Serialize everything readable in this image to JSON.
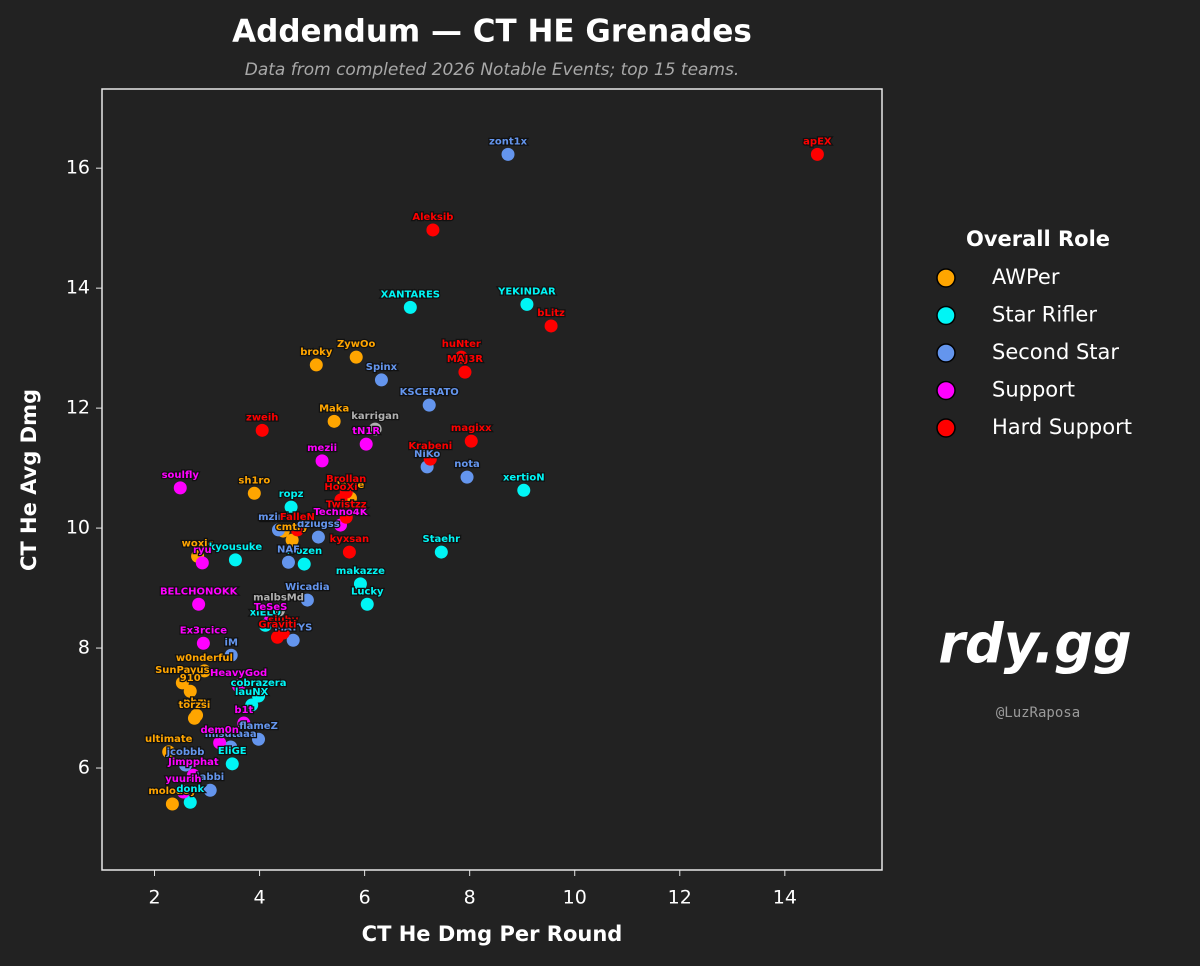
{
  "chart_data": {
    "type": "scatter",
    "title": "Addendum — CT HE Grenades",
    "subtitle": "Data from completed 2026 Notable Events; top 15 teams.",
    "xlabel": "CT He Dmg Per Round",
    "ylabel": "CT He Avg Dmg",
    "legend_title": "Overall Role",
    "xlim": [
      1.0,
      15.85
    ],
    "ylim": [
      4.3,
      17.32
    ],
    "xticks": [
      2,
      4,
      6,
      8,
      10,
      12,
      14
    ],
    "yticks": [
      6,
      8,
      10,
      12,
      14,
      16
    ],
    "series": [
      {
        "name": "AWPer",
        "color": "#ffa500",
        "labels": [
          "ZywOo",
          "broky",
          "Maka",
          "sh1ro",
          "m0NESY",
          "cmtry",
          "woxic",
          "w0nderful",
          "SunPayus",
          "910",
          "phzy",
          "torzsi",
          "ultimate",
          "molodoy",
          "Jame"
        ],
        "x": [
          5.84,
          5.08,
          5.42,
          3.9,
          4.45,
          4.62,
          2.82,
          2.95,
          2.53,
          2.68,
          2.8,
          2.76,
          2.27,
          2.34,
          5.73
        ],
        "values": [
          12.85,
          12.72,
          11.78,
          10.58,
          9.95,
          9.8,
          9.53,
          7.62,
          7.42,
          7.28,
          6.88,
          6.83,
          6.27,
          5.4,
          10.5
        ]
      },
      {
        "name": "Star Rifler",
        "color": "#00f5f5",
        "labels": [
          "XANTARES",
          "YEKINDAR",
          "xertioN",
          "Staehr",
          "ropz",
          "frozen",
          "makazze",
          "Lucky",
          "xiELO",
          "cobrazera",
          "lauNX",
          "EliGE",
          "donk",
          "kyousuke"
        ],
        "x": [
          6.87,
          9.09,
          9.03,
          7.46,
          4.6,
          4.85,
          5.92,
          6.05,
          4.11,
          3.98,
          3.85,
          3.48,
          2.68,
          3.54
        ],
        "values": [
          13.68,
          13.73,
          10.63,
          9.6,
          10.35,
          9.4,
          9.07,
          8.73,
          8.38,
          7.2,
          7.05,
          6.07,
          5.43,
          9.47
        ]
      },
      {
        "name": "Second Star",
        "color": "#6495ed",
        "labels": [
          "zont1x",
          "Spinx",
          "KSCERATO",
          "NiKo",
          "nota",
          "dziugss",
          "mzinho",
          "NAF",
          "Wicadia",
          "MATYS",
          "iM",
          "flameZ",
          "misutaaa",
          "jcobbb",
          "jabbi"
        ],
        "x": [
          8.73,
          6.32,
          7.23,
          7.19,
          7.95,
          5.12,
          4.36,
          4.55,
          4.91,
          4.64,
          3.46,
          3.98,
          3.45,
          2.59,
          3.06
        ],
        "values": [
          16.23,
          12.47,
          12.05,
          11.02,
          10.85,
          9.85,
          9.97,
          9.43,
          8.8,
          8.13,
          7.88,
          6.48,
          6.35,
          6.05,
          5.63
        ]
      },
      {
        "name": "Support",
        "color": "#ff00ff",
        "labels": [
          "soulfly",
          "mezii",
          "tN1R",
          "Techno4K",
          "ryu",
          "BELCHONOKK",
          "TeSeS",
          "Ex3rcice",
          "HeavyGod",
          "b1t",
          "dem0n",
          "Jimpphat",
          "yuurih"
        ],
        "x": [
          2.49,
          5.19,
          6.03,
          5.54,
          2.91,
          2.84,
          4.21,
          2.93,
          3.6,
          3.7,
          3.24,
          2.74,
          2.55
        ],
        "values": [
          10.67,
          11.12,
          11.4,
          10.05,
          9.42,
          8.73,
          8.47,
          8.08,
          7.37,
          6.75,
          6.42,
          5.88,
          5.6
        ]
      },
      {
        "name": "Hard Support",
        "color": "#ff0000",
        "labels": [
          "apEX",
          "Aleksib",
          "bLitz",
          "huNter",
          "MAJ3R",
          "zweih",
          "magixx",
          "Krabeni",
          "HooXi",
          "Brollan",
          "FalleN",
          "Twistzz",
          "kyxsan",
          "siuhy",
          "Graviti"
        ],
        "x": [
          14.62,
          7.3,
          9.55,
          7.84,
          7.91,
          4.05,
          8.03,
          7.25,
          5.55,
          5.65,
          4.72,
          5.65,
          5.71,
          4.45,
          4.34
        ],
        "values": [
          16.23,
          14.97,
          13.37,
          12.85,
          12.6,
          11.63,
          11.45,
          11.15,
          10.47,
          10.6,
          9.97,
          10.18,
          9.6,
          8.25,
          8.18
        ]
      },
      {
        "color": "#b0b0b0",
        "labels": [
          "karrigan",
          "malbsMd"
        ],
        "x": [
          6.2,
          4.36
        ],
        "values": [
          11.65,
          8.63
        ]
      }
    ]
  },
  "brand": "rdy.gg",
  "handle": "@LuzRaposa"
}
